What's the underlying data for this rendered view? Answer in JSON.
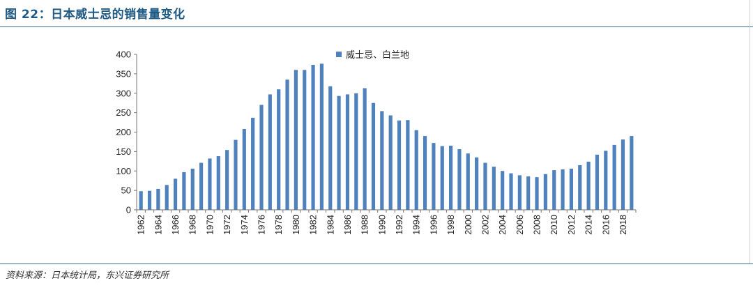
{
  "header": {
    "title": "图 22：日本威士忌的销售量变化"
  },
  "footer": {
    "source": "资料来源：日本统计局，东兴证券研究所"
  },
  "chart_data": {
    "type": "bar",
    "categories": [
      "1962",
      "1963",
      "1964",
      "1965",
      "1966",
      "1967",
      "1968",
      "1969",
      "1970",
      "1971",
      "1972",
      "1973",
      "1974",
      "1975",
      "1976",
      "1977",
      "1978",
      "1979",
      "1980",
      "1981",
      "1982",
      "1983",
      "1984",
      "1985",
      "1986",
      "1987",
      "1988",
      "1989",
      "1990",
      "1991",
      "1992",
      "1993",
      "1994",
      "1995",
      "1996",
      "1997",
      "1998",
      "1999",
      "2000",
      "2001",
      "2002",
      "2003",
      "2004",
      "2005",
      "2006",
      "2007",
      "2008",
      "2009",
      "2010",
      "2011",
      "2012",
      "2013",
      "2014",
      "2015",
      "2016",
      "2017",
      "2018",
      "2019"
    ],
    "x_tick_labels": [
      "1962",
      "1964",
      "1966",
      "1968",
      "1970",
      "1972",
      "1974",
      "1976",
      "1978",
      "1980",
      "1982",
      "1984",
      "1986",
      "1988",
      "1990",
      "1992",
      "1994",
      "1996",
      "1998",
      "2000",
      "2002",
      "2004",
      "2006",
      "2008",
      "2010",
      "2012",
      "2014",
      "2016",
      "2018"
    ],
    "series": [
      {
        "name": "威士忌、白兰地",
        "color": "#4f81bd",
        "values": [
          48,
          49,
          54,
          64,
          80,
          97,
          106,
          121,
          132,
          138,
          154,
          180,
          208,
          237,
          270,
          297,
          310,
          335,
          360,
          360,
          373,
          376,
          318,
          293,
          297,
          300,
          313,
          275,
          254,
          243,
          230,
          231,
          205,
          190,
          172,
          164,
          165,
          156,
          145,
          135,
          121,
          111,
          100,
          94,
          89,
          86,
          84,
          92,
          102,
          104,
          106,
          115,
          124,
          142,
          152,
          167,
          181,
          190
        ]
      }
    ],
    "yticks": [
      0,
      50,
      100,
      150,
      200,
      250,
      300,
      350,
      400
    ],
    "ylim": [
      0,
      400
    ],
    "legend_position": "top-center",
    "grid": false
  }
}
